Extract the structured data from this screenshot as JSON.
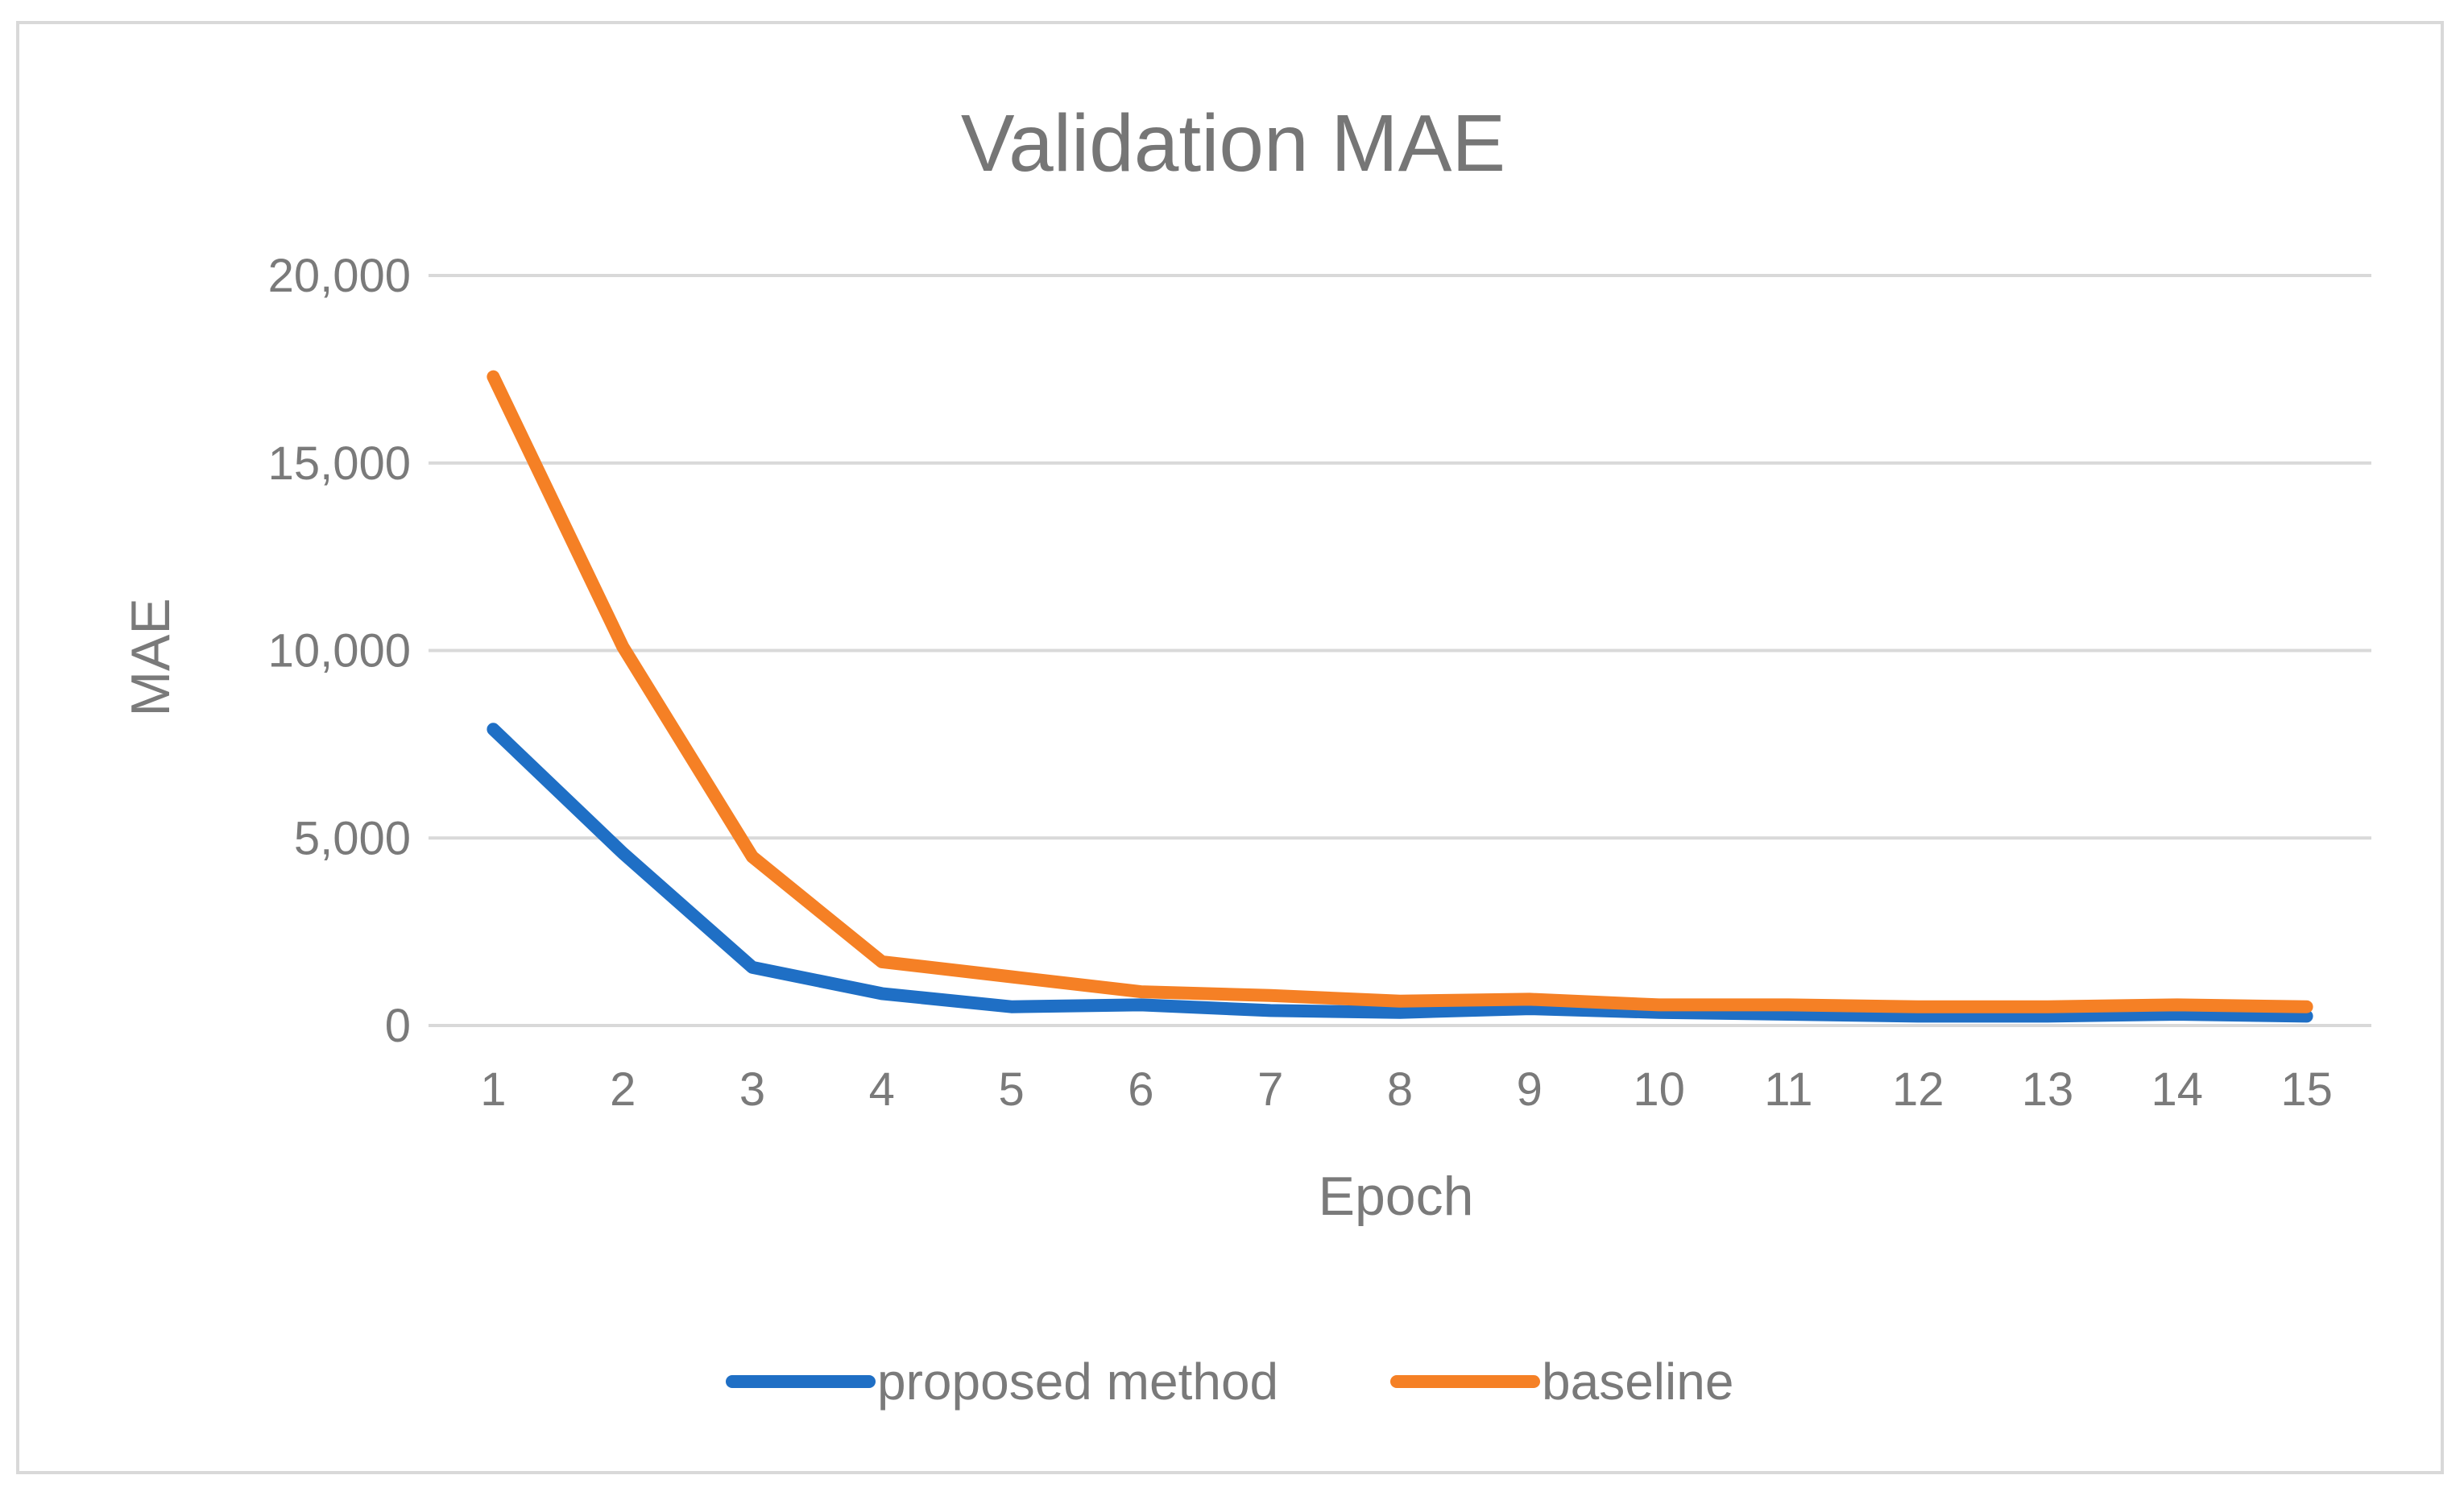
{
  "chart_data": {
    "type": "line",
    "title": "Validation MAE",
    "xlabel": "Epoch",
    "ylabel": "MAE",
    "categories": [
      "1",
      "2",
      "3",
      "4",
      "5",
      "6",
      "7",
      "8",
      "9",
      "10",
      "11",
      "12",
      "13",
      "14",
      "15"
    ],
    "ylim": [
      0,
      20000
    ],
    "yticks": [
      0,
      5000,
      10000,
      15000,
      20000
    ],
    "ytick_labels": [
      "0",
      "5,000",
      "10,000",
      "15,000",
      "20,000"
    ],
    "grid": true,
    "legend_position": "bottom",
    "series": [
      {
        "name": "proposed method",
        "color": "#1f6fc5",
        "values": [
          7900,
          4600,
          1550,
          850,
          500,
          550,
          400,
          350,
          450,
          350,
          300,
          250,
          250,
          300,
          250
        ]
      },
      {
        "name": "baseline",
        "color": "#f58025",
        "values": [
          17300,
          10100,
          4500,
          1700,
          1300,
          900,
          800,
          650,
          700,
          550,
          550,
          500,
          500,
          550,
          500
        ]
      }
    ]
  }
}
